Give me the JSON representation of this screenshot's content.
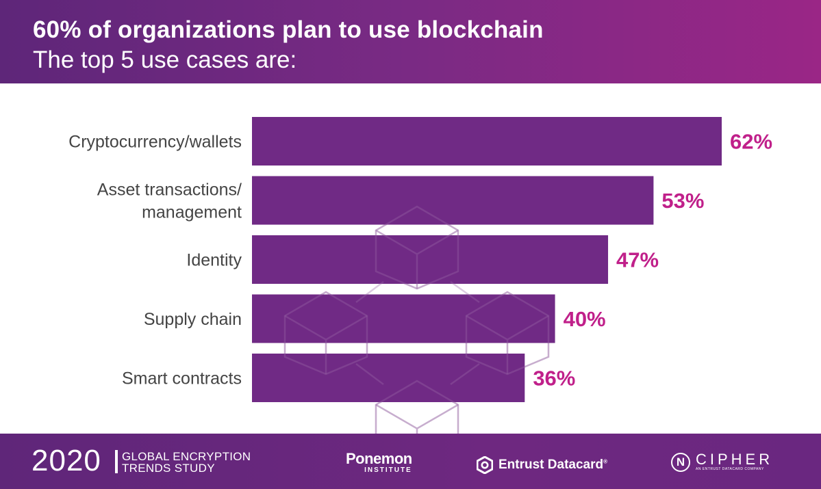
{
  "header": {
    "title": "60% of organizations plan to use blockchain",
    "subtitle": "The top 5 use cases are:"
  },
  "chart_data": {
    "type": "bar",
    "orientation": "horizontal",
    "categories": [
      [
        "Cryptocurrency/wallets"
      ],
      [
        "Asset transactions/",
        "management"
      ],
      [
        "Identity"
      ],
      [
        "Supply chain"
      ],
      [
        "Smart contracts"
      ]
    ],
    "values": [
      62,
      53,
      47,
      40,
      36
    ],
    "value_labels": [
      "62%",
      "53%",
      "47%",
      "40%",
      "36%"
    ],
    "unit": "%",
    "xlim": [
      0,
      62
    ],
    "grid": false,
    "legend": "none"
  },
  "colors": {
    "bar": "#702a85",
    "value_label": "#c0208a",
    "category_label": "#444444",
    "watermark": "#c9b4cf"
  },
  "footer": {
    "year": "2020",
    "study_line1": "GLOBAL ENCRYPTION",
    "study_line2": "TRENDS STUDY",
    "ponemon_main": "Ponemon",
    "ponemon_sub": "INSTITUTE",
    "entrust": "Entrust Datacard",
    "entrust_mark": "®",
    "ncipher_main": "CIPHER",
    "ncipher_letter": "N",
    "ncipher_sub": "AN ENTRUST DATACARD COMPANY"
  },
  "icons": {
    "watermark": "blockchain-cubes-icon",
    "entrust_logo": "hexagon-icon"
  }
}
